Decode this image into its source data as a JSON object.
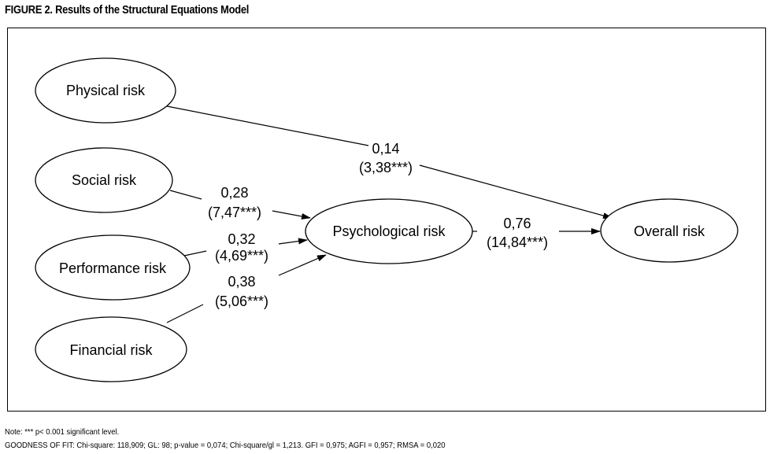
{
  "figure": {
    "title": "FIGURE 2. Results of the Structural Equations Model"
  },
  "nodes": {
    "physical": "Physical risk",
    "social": "Social risk",
    "performance": "Performance risk",
    "financial": "Financial risk",
    "psychological": "Psychological risk",
    "overall": "Overall risk"
  },
  "paths": {
    "physical_overall": {
      "coef": "0,14",
      "tvalue": "(3,38***)"
    },
    "social_psych": {
      "coef": "0,28",
      "tvalue": "(7,47***)"
    },
    "performance_psych": {
      "coef": "0,32",
      "tvalue": "(4,69***)"
    },
    "financial_psych": {
      "coef": "0,38",
      "tvalue": "(5,06***)"
    },
    "psych_overall": {
      "coef": "0,76",
      "tvalue": "(14,84***)"
    }
  },
  "notes": {
    "significance": "Note: *** p< 0.001 significant level.",
    "goodness_of_fit": "GOODNESS OF FIT: Chi-square: 118,909; GL: 98; p-value = 0,074; Chi-square/gl = 1,213. GFI = 0,975; AGFI = 0,957; RMSA = 0,020"
  }
}
